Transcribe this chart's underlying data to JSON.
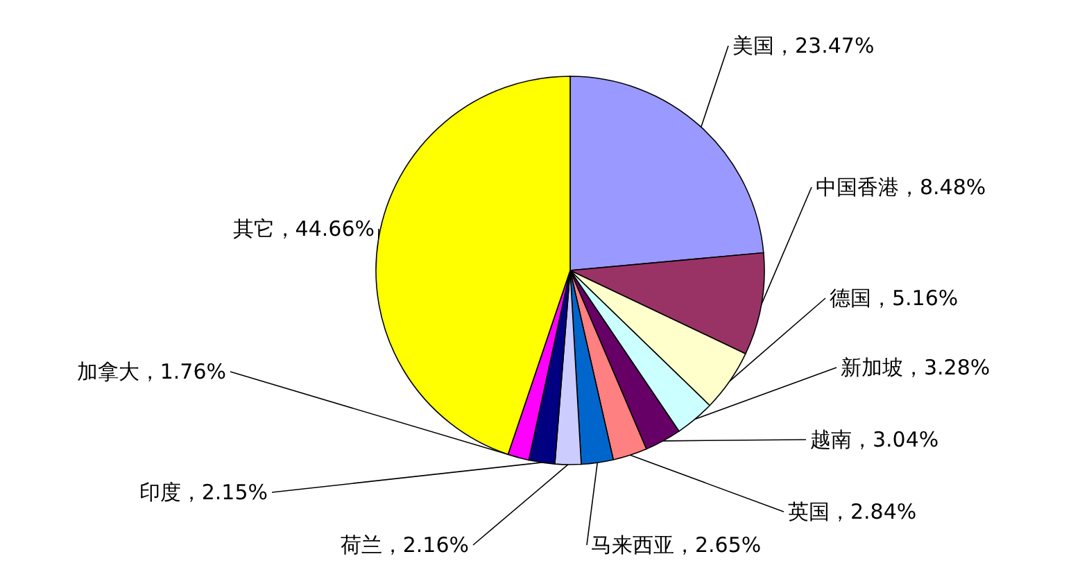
{
  "chart_data": {
    "type": "pie",
    "categories": [
      "美国",
      "中国香港",
      "德国",
      "新加坡",
      "越南",
      "英国",
      "马来西亚",
      "荷兰",
      "印度",
      "加拿大",
      "其它"
    ],
    "values": [
      23.47,
      8.48,
      5.16,
      3.28,
      3.04,
      2.84,
      2.65,
      2.16,
      2.15,
      1.76,
      44.66
    ],
    "colors": [
      "#9999ff",
      "#993366",
      "#ffffcc",
      "#ccffff",
      "#660066",
      "#ff8080",
      "#0066cc",
      "#ccccff",
      "#000080",
      "#ff00ff",
      "#ffff00"
    ],
    "value_labels": [
      "，23.47%",
      "，8.48%",
      "，5.16%",
      "，3.28%",
      "，3.04%",
      "，2.84%",
      "，2.65%",
      "，2.16%",
      "，2.15%",
      "，1.76%",
      "，44.66%"
    ]
  }
}
